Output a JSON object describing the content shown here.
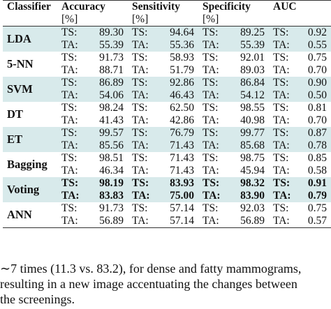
{
  "table": {
    "headers": {
      "classifier": "Classifier",
      "accuracy": "Accuracy",
      "sensitivity": "Sensitivity",
      "specificity": "Specificity",
      "auc": "AUC",
      "unit": "[%]"
    },
    "rows": [
      {
        "name": "LDA",
        "shaded": true,
        "bold": false,
        "ts": [
          "TS:",
          "89.30",
          "TS:",
          "94.64",
          "TS:",
          "89.25",
          "TS:",
          "0.92"
        ],
        "ta": [
          "TA:",
          "55.39",
          "TA:",
          "55.36",
          "TA:",
          "55.39",
          "TA:",
          "0.55"
        ]
      },
      {
        "name": "5-NN",
        "shaded": false,
        "bold": false,
        "ts": [
          "TS:",
          "91.73",
          "TS:",
          "58.93",
          "TS:",
          "92.01",
          "TS:",
          "0.75"
        ],
        "ta": [
          "TA:",
          "88.71",
          "TA:",
          "51.79",
          "TA:",
          "89.03",
          "TA:",
          "0.70"
        ]
      },
      {
        "name": "SVM",
        "shaded": true,
        "bold": false,
        "ts": [
          "TS:",
          "86.89",
          "TS:",
          "92.86",
          "TS:",
          "86.84",
          "TS:",
          "0.90"
        ],
        "ta": [
          "TA:",
          "54.06",
          "TA:",
          "46.43",
          "TA:",
          "54.12",
          "TA:",
          "0.50"
        ]
      },
      {
        "name": "DT",
        "shaded": false,
        "bold": false,
        "ts": [
          "TS:",
          "98.24",
          "TS:",
          "62.50",
          "TS:",
          "98.55",
          "TS:",
          "0.81"
        ],
        "ta": [
          "TA:",
          "41.43",
          "TA:",
          "42.86",
          "TA:",
          "40.98",
          "TA:",
          "0.70"
        ]
      },
      {
        "name": "ET",
        "shaded": true,
        "bold": false,
        "ts": [
          "TS:",
          "99.57",
          "TS:",
          "76.79",
          "TS:",
          "99.77",
          "TS:",
          "0.87"
        ],
        "ta": [
          "TA:",
          "85.56",
          "TA:",
          "71.43",
          "TA:",
          "85.68",
          "TA:",
          "0.78"
        ]
      },
      {
        "name": "Bagging",
        "shaded": false,
        "bold": false,
        "ts": [
          "TS:",
          "98.51",
          "TS:",
          "71.43",
          "TS:",
          "98.75",
          "TS:",
          "0.85"
        ],
        "ta": [
          "TA:",
          "46.34",
          "TA:",
          "71.43",
          "TA:",
          "45.94",
          "TA:",
          "0.58"
        ]
      },
      {
        "name": "Voting",
        "shaded": true,
        "bold": true,
        "ts": [
          "TS:",
          "98.19",
          "TS:",
          "83.93",
          "TS:",
          "98.32",
          "TS:",
          "0.91"
        ],
        "ta": [
          "TA:",
          "83.83",
          "TA:",
          "75.00",
          "TA:",
          "83.90",
          "TA:",
          "0.79"
        ]
      },
      {
        "name": "ANN",
        "shaded": false,
        "bold": false,
        "ts": [
          "TS:",
          "91.73",
          "TS:",
          "57.14",
          "TS:",
          "92.03",
          "TS:",
          "0.75"
        ],
        "ta": [
          "TA:",
          "56.89",
          "TA:",
          "57.14",
          "TA:",
          "56.89",
          "TA:",
          "0.57"
        ]
      }
    ]
  },
  "caption_lines": [
    "∼7 times (11.3 vs. 83.2), for dense and fatty mammograms,",
    "resulting in a new image accentuating the changes between",
    "the screenings."
  ]
}
